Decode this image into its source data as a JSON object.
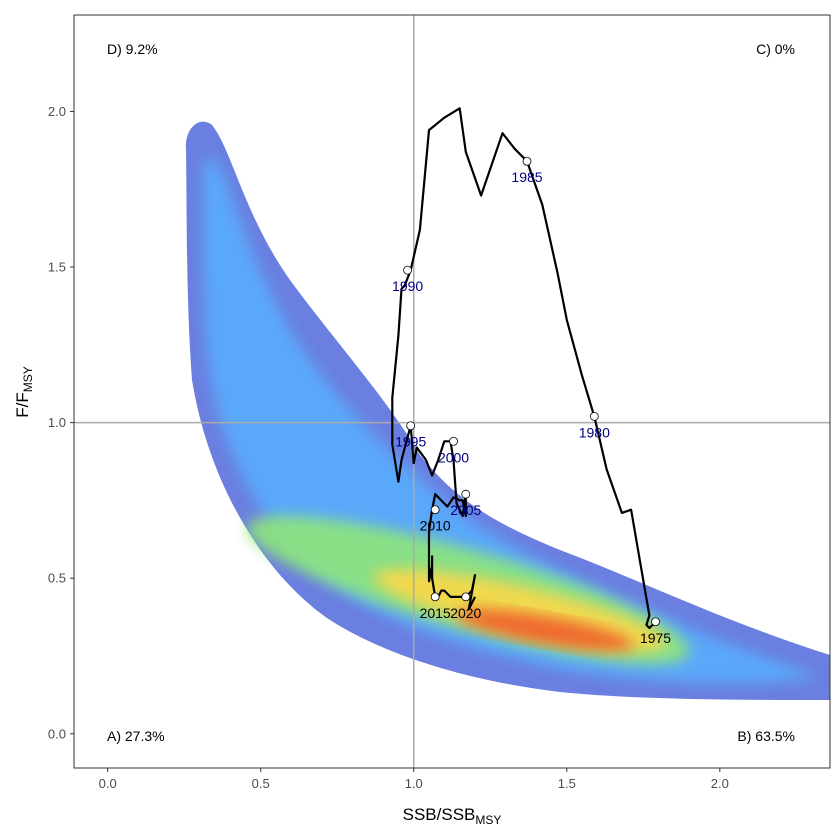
{
  "chart_data": {
    "type": "line",
    "xlabel": {
      "main": "SSB/SSB",
      "sub": "MSY"
    },
    "ylabel": {
      "main": "F/F",
      "sub": "MSY"
    },
    "xlim": [
      -0.11,
      2.36
    ],
    "ylim": [
      -0.11,
      2.31
    ],
    "x_ticks": [
      "0.0",
      "0.5",
      "1.0",
      "1.5",
      "2.0"
    ],
    "y_ticks": [
      "0.0",
      "0.5",
      "1.0",
      "1.5",
      "2.0"
    ],
    "reference_lines": {
      "x": 1.0,
      "y": 1.0
    },
    "quadrant_labels": [
      {
        "id": "D",
        "text": "D) 9.2%",
        "pos": "top-left"
      },
      {
        "id": "C",
        "text": "C) 0%",
        "pos": "top-right"
      },
      {
        "id": "A",
        "text": "A) 27.3%",
        "pos": "bottom-left"
      },
      {
        "id": "B",
        "text": "B) 63.5%",
        "pos": "bottom-right"
      }
    ],
    "trajectory": {
      "x": [
        1.79,
        1.77,
        1.76,
        1.77,
        1.74,
        1.71,
        1.68,
        1.63,
        1.59,
        1.55,
        1.5,
        1.47,
        1.42,
        1.37,
        1.33,
        1.29,
        1.22,
        1.17,
        1.15,
        1.1,
        1.05,
        1.02,
        0.99,
        0.97,
        0.96,
        0.95,
        0.93,
        0.93,
        0.95,
        0.96,
        0.99,
        1.0,
        1.01,
        1.04,
        1.06,
        1.08,
        1.1,
        1.12,
        1.13,
        1.14,
        1.16,
        1.17,
        1.17,
        1.16,
        1.15,
        1.13,
        1.11,
        1.09,
        1.07,
        1.06,
        1.05,
        1.05,
        1.06,
        1.06,
        1.06,
        1.07,
        1.08,
        1.09,
        1.1,
        1.12,
        1.14,
        1.17,
        1.19,
        1.2,
        1.18,
        1.19,
        1.2
      ],
      "y": [
        0.36,
        0.34,
        0.35,
        0.38,
        0.55,
        0.72,
        0.71,
        0.85,
        1.02,
        1.15,
        1.33,
        1.48,
        1.7,
        1.84,
        1.88,
        1.93,
        1.73,
        1.87,
        2.01,
        1.98,
        1.94,
        1.62,
        1.49,
        1.44,
        1.43,
        1.28,
        1.08,
        0.93,
        0.81,
        0.88,
        0.99,
        0.87,
        0.92,
        0.88,
        0.83,
        0.88,
        0.94,
        0.94,
        0.88,
        0.74,
        0.7,
        0.77,
        0.7,
        0.75,
        0.75,
        0.76,
        0.73,
        0.75,
        0.77,
        0.72,
        0.65,
        0.49,
        0.54,
        0.57,
        0.5,
        0.44,
        0.44,
        0.46,
        0.46,
        0.44,
        0.44,
        0.44,
        0.46,
        0.51,
        0.4,
        0.42,
        0.44
      ]
    },
    "year_points": [
      {
        "year": "1975",
        "x": 1.79,
        "y": 0.36,
        "color": "#000000"
      },
      {
        "year": "1980",
        "x": 1.59,
        "y": 1.02,
        "color": "#000080"
      },
      {
        "year": "1985",
        "x": 1.37,
        "y": 1.84,
        "color": "#000080"
      },
      {
        "year": "1990",
        "x": 0.98,
        "y": 1.49,
        "color": "#000080"
      },
      {
        "year": "1995",
        "x": 0.99,
        "y": 0.99,
        "color": "#000080"
      },
      {
        "year": "2000",
        "x": 1.13,
        "y": 0.94,
        "color": "#000080"
      },
      {
        "year": "2005",
        "x": 1.17,
        "y": 0.77,
        "color": "#000080"
      },
      {
        "year": "2010",
        "x": 1.07,
        "y": 0.72,
        "color": "#000000"
      },
      {
        "year": "2015",
        "x": 1.07,
        "y": 0.44,
        "color": "#000000"
      },
      {
        "year": "2020",
        "x": 1.17,
        "y": 0.44,
        "color": "#000000"
      }
    ],
    "grid": false,
    "colors": {
      "line": "#000000",
      "reference": "#aaaaaa",
      "panel_border": "#333333",
      "density_outer": "#6a7fe0",
      "density_mid": "#5ab0ff",
      "density_inner": "#8ee67a",
      "density_core": "#ef6a2e"
    }
  }
}
